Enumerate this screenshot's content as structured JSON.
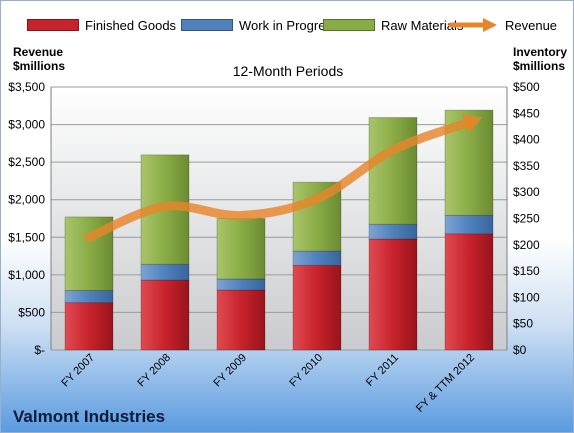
{
  "company": "Valmont Industries",
  "chart_data": {
    "type": "bar",
    "stacked": true,
    "title": "12-Month Periods",
    "left_axis_label": [
      "Revenue",
      "$millions"
    ],
    "right_axis_label": [
      "Inventory",
      "$millions"
    ],
    "categories": [
      "FY 2007",
      "FY 2008",
      "FY 2009",
      "FY 2010",
      "FY 2011",
      "FY & TTM 2012"
    ],
    "series": [
      {
        "name": "Finished Goods",
        "axis": "right",
        "color": "#c8232c",
        "values": [
          90,
          133,
          114,
          161,
          211,
          221
        ]
      },
      {
        "name": "Work in Progress",
        "axis": "right",
        "color": "#4f81bd",
        "values": [
          23,
          30,
          21,
          27,
          28,
          35
        ]
      },
      {
        "name": "Raw Materials",
        "axis": "right",
        "color": "#8aac46",
        "values": [
          140,
          208,
          115,
          131,
          203,
          200
        ]
      }
    ],
    "line_series": {
      "name": "Revenue",
      "axis": "left",
      "color": "#e8852a",
      "values": [
        1500,
        1910,
        1790,
        2010,
        2660,
        3030
      ]
    },
    "left_axis": {
      "min": 0,
      "max": 3500,
      "step": 500,
      "tick_labels": [
        "$-",
        "$500",
        "$1,000",
        "$1,500",
        "$2,000",
        "$2,500",
        "$3,000",
        "$3,500"
      ]
    },
    "right_axis": {
      "min": 0,
      "max": 500,
      "step": 50,
      "tick_labels": [
        "$0",
        "$50",
        "$100",
        "$150",
        "$200",
        "$250",
        "$300",
        "$350",
        "$400",
        "$450",
        "$500"
      ]
    },
    "grid": true,
    "legend_position": "top"
  }
}
